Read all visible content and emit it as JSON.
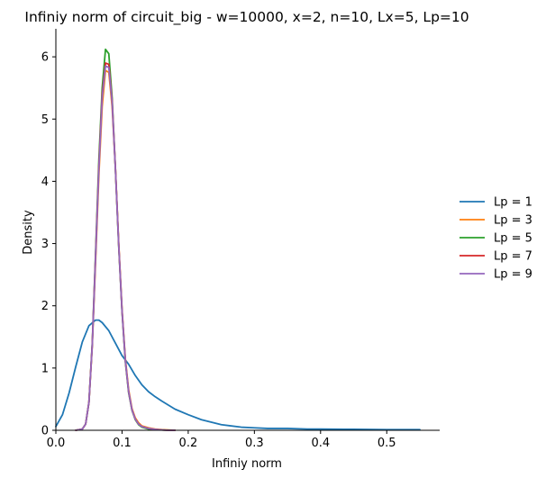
{
  "chart_data": {
    "type": "line",
    "title": "Infiniy norm of circuit_big - w=10000, x=2, n=10, Lx=5, Lp=10",
    "xlabel": "Infiniy norm",
    "ylabel": "Density",
    "xlim": [
      0.0,
      0.58
    ],
    "ylim": [
      0.0,
      6.45
    ],
    "xticks": [
      0.0,
      0.1,
      0.2,
      0.3,
      0.4,
      0.5
    ],
    "xtick_labels": [
      "0.0",
      "0.1",
      "0.2",
      "0.3",
      "0.4",
      "0.5"
    ],
    "yticks": [
      0,
      1,
      2,
      3,
      4,
      5,
      6
    ],
    "ytick_labels": [
      "0",
      "1",
      "2",
      "3",
      "4",
      "5",
      "6"
    ],
    "grid": false,
    "legend_placement": "right",
    "series": [
      {
        "name": "Lp = 1",
        "color": "#1f77b4",
        "x": [
          0.0,
          0.01,
          0.02,
          0.03,
          0.04,
          0.05,
          0.06,
          0.065,
          0.07,
          0.08,
          0.09,
          0.1,
          0.11,
          0.12,
          0.13,
          0.14,
          0.15,
          0.16,
          0.18,
          0.2,
          0.22,
          0.25,
          0.28,
          0.3,
          0.32,
          0.35,
          0.38,
          0.4,
          0.45,
          0.5,
          0.55
        ],
        "y": [
          0.06,
          0.25,
          0.6,
          1.02,
          1.42,
          1.68,
          1.77,
          1.77,
          1.73,
          1.6,
          1.4,
          1.2,
          1.06,
          0.88,
          0.73,
          0.62,
          0.54,
          0.47,
          0.34,
          0.25,
          0.17,
          0.09,
          0.05,
          0.04,
          0.03,
          0.03,
          0.02,
          0.02,
          0.015,
          0.01,
          0.01
        ]
      },
      {
        "name": "Lp = 3",
        "color": "#ff7f0e",
        "x": [
          0.03,
          0.04,
          0.045,
          0.05,
          0.055,
          0.06,
          0.065,
          0.07,
          0.075,
          0.08,
          0.085,
          0.09,
          0.095,
          0.1,
          0.105,
          0.11,
          0.115,
          0.12,
          0.125,
          0.13,
          0.14,
          0.15,
          0.16,
          0.17,
          0.18
        ],
        "y": [
          0.0,
          0.02,
          0.1,
          0.45,
          1.35,
          2.7,
          4.1,
          5.2,
          5.78,
          5.75,
          5.2,
          4.2,
          3.0,
          1.95,
          1.15,
          0.65,
          0.35,
          0.2,
          0.12,
          0.07,
          0.04,
          0.02,
          0.01,
          0.005,
          0.0
        ]
      },
      {
        "name": "Lp = 5",
        "color": "#2ca02c",
        "x": [
          0.03,
          0.04,
          0.045,
          0.05,
          0.055,
          0.06,
          0.065,
          0.07,
          0.075,
          0.08,
          0.085,
          0.09,
          0.095,
          0.1,
          0.105,
          0.11,
          0.115,
          0.12,
          0.125,
          0.13,
          0.14,
          0.15,
          0.16,
          0.17,
          0.18
        ],
        "y": [
          0.0,
          0.02,
          0.1,
          0.45,
          1.4,
          2.85,
          4.35,
          5.5,
          6.12,
          6.05,
          5.35,
          4.2,
          2.95,
          1.9,
          1.1,
          0.6,
          0.32,
          0.17,
          0.09,
          0.05,
          0.02,
          0.01,
          0.005,
          0.0,
          0.0
        ]
      },
      {
        "name": "Lp = 7",
        "color": "#d62728",
        "x": [
          0.03,
          0.04,
          0.045,
          0.05,
          0.055,
          0.06,
          0.065,
          0.07,
          0.075,
          0.08,
          0.085,
          0.09,
          0.095,
          0.1,
          0.105,
          0.11,
          0.115,
          0.12,
          0.125,
          0.13,
          0.14,
          0.15,
          0.16,
          0.17,
          0.18
        ],
        "y": [
          0.0,
          0.02,
          0.1,
          0.45,
          1.38,
          2.8,
          4.25,
          5.4,
          5.9,
          5.88,
          5.3,
          4.22,
          2.98,
          1.92,
          1.12,
          0.62,
          0.33,
          0.18,
          0.1,
          0.06,
          0.03,
          0.015,
          0.005,
          0.0,
          0.0
        ]
      },
      {
        "name": "Lp = 9",
        "color": "#9467bd",
        "x": [
          0.03,
          0.04,
          0.045,
          0.05,
          0.055,
          0.06,
          0.065,
          0.07,
          0.075,
          0.08,
          0.085,
          0.09,
          0.095,
          0.1,
          0.105,
          0.11,
          0.115,
          0.12,
          0.125,
          0.13,
          0.14,
          0.15,
          0.16,
          0.17,
          0.18
        ],
        "y": [
          0.0,
          0.02,
          0.1,
          0.45,
          1.37,
          2.78,
          4.2,
          5.35,
          5.85,
          5.83,
          5.27,
          4.2,
          2.97,
          1.92,
          1.12,
          0.62,
          0.33,
          0.18,
          0.1,
          0.06,
          0.03,
          0.015,
          0.005,
          0.0,
          0.0
        ]
      }
    ]
  }
}
